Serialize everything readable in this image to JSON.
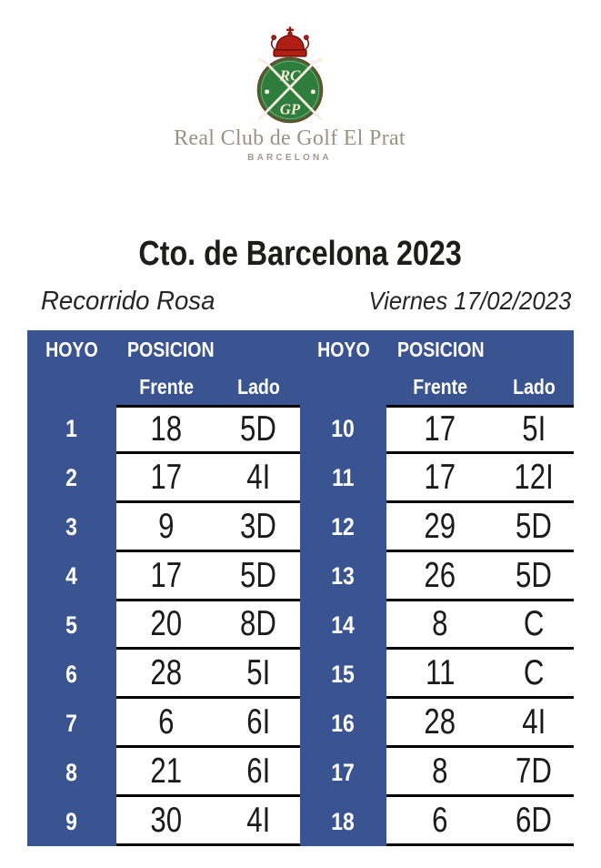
{
  "logo": {
    "monogram_top": "RC",
    "monogram_bottom": "GP",
    "club_name": "Real Club de Golf El Prat",
    "city": "BARCELONA"
  },
  "event": {
    "title": "Cto. de Barcelona 2023",
    "course": "Recorrido Rosa",
    "date": "Viernes 17/02/2023"
  },
  "table": {
    "headers": {
      "hole": "HOYO",
      "position": "POSICION",
      "front": "Frente",
      "side": "Lado"
    },
    "left_rows": [
      {
        "hole": 1,
        "front": 18,
        "side": "5D"
      },
      {
        "hole": 2,
        "front": 17,
        "side": "4I"
      },
      {
        "hole": 3,
        "front": 9,
        "side": "3D"
      },
      {
        "hole": 4,
        "front": 17,
        "side": "5D"
      },
      {
        "hole": 5,
        "front": 20,
        "side": "8D"
      },
      {
        "hole": 6,
        "front": 28,
        "side": "5I"
      },
      {
        "hole": 7,
        "front": 6,
        "side": "6I"
      },
      {
        "hole": 8,
        "front": 21,
        "side": "6I"
      },
      {
        "hole": 9,
        "front": 30,
        "side": "4I"
      }
    ],
    "right_rows": [
      {
        "hole": 10,
        "front": 17,
        "side": "5I"
      },
      {
        "hole": 11,
        "front": 17,
        "side": "12I"
      },
      {
        "hole": 12,
        "front": 29,
        "side": "5D"
      },
      {
        "hole": 13,
        "front": 26,
        "side": "5D"
      },
      {
        "hole": 14,
        "front": 8,
        "side": "C"
      },
      {
        "hole": 15,
        "front": 11,
        "side": "C"
      },
      {
        "hole": 16,
        "front": 28,
        "side": "4I"
      },
      {
        "hole": 17,
        "front": 8,
        "side": "7D"
      },
      {
        "hole": 18,
        "front": 6,
        "side": "6D"
      }
    ]
  },
  "colors": {
    "header_blue": "#3A5491",
    "row_line": "#000000",
    "text_dark": "#1D1D1B",
    "logo_green": "#2E7D3C",
    "logo_red": "#B01F14",
    "logo_text_gray": "#9B9285"
  }
}
